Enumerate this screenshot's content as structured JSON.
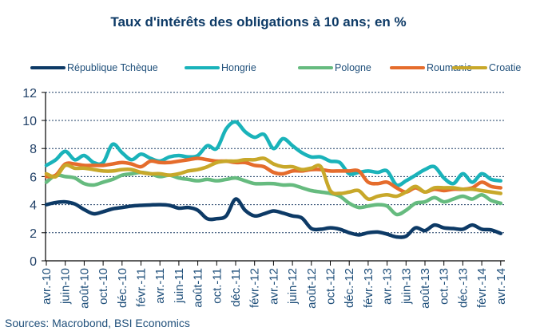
{
  "chart_data": {
    "type": "line",
    "title": "Taux d'intérêts des obligations à 10 ans; en %",
    "xlabel": "",
    "ylabel": "",
    "ylim": [
      0,
      12
    ],
    "yticks": [
      0,
      2,
      4,
      6,
      8,
      10,
      12
    ],
    "grid": true,
    "legend_position": "top",
    "x_tick_labels": [
      "avr.-10",
      "juin-10",
      "août-10",
      "oct.-10",
      "déc.-10",
      "févr.-11",
      "avr.-11",
      "juin-11",
      "août-11",
      "oct.-11",
      "déc.-11",
      "févr.-12",
      "avr.-12",
      "juin-12",
      "août-12",
      "oct.-12",
      "déc.-12",
      "févr.-13",
      "avr.-13",
      "juin-13",
      "août-13",
      "oct.-13",
      "déc.-13",
      "févr.-14",
      "avr.-14"
    ],
    "x": [
      "avr.-10",
      "mai-10",
      "juin-10",
      "juil.-10",
      "août-10",
      "sept.-10",
      "oct.-10",
      "nov.-10",
      "déc.-10",
      "janv.-11",
      "févr.-11",
      "mars-11",
      "avr.-11",
      "mai-11",
      "juin-11",
      "juil.-11",
      "août-11",
      "sept.-11",
      "oct.-11",
      "nov.-11",
      "déc.-11",
      "janv.-12",
      "févr.-12",
      "mars-12",
      "avr.-12",
      "mai-12",
      "juin-12",
      "juil.-12",
      "août-12",
      "sept.-12",
      "oct.-12",
      "nov.-12",
      "déc.-12",
      "janv.-13",
      "févr.-13",
      "mars-13",
      "avr.-13",
      "mai-13",
      "juin-13",
      "juil.-13",
      "août-13",
      "sept.-13",
      "oct.-13",
      "nov.-13",
      "déc.-13",
      "janv.-14",
      "févr.-14",
      "mars-14",
      "avr.-14"
    ],
    "series": [
      {
        "name": "République Tchèque",
        "color": "#0d3a66",
        "values": [
          4.0,
          4.15,
          4.2,
          4.05,
          3.65,
          3.35,
          3.5,
          3.7,
          3.8,
          3.9,
          3.95,
          3.98,
          4.0,
          3.95,
          3.75,
          3.8,
          3.6,
          3.0,
          3.0,
          3.2,
          4.4,
          3.6,
          3.2,
          3.35,
          3.55,
          3.4,
          3.2,
          3.05,
          2.3,
          2.25,
          2.35,
          2.25,
          2.0,
          1.85,
          2.0,
          2.05,
          1.9,
          1.7,
          1.75,
          2.35,
          2.15,
          2.55,
          2.35,
          2.3,
          2.25,
          2.55,
          2.25,
          2.2,
          1.95
        ]
      },
      {
        "name": "Hongrie",
        "color": "#1ab3ba",
        "values": [
          6.8,
          7.2,
          7.8,
          7.2,
          7.5,
          7.0,
          7.0,
          8.3,
          7.7,
          7.2,
          7.6,
          7.3,
          7.1,
          7.4,
          7.5,
          7.4,
          7.5,
          8.2,
          8.0,
          9.4,
          9.9,
          9.2,
          8.8,
          9.0,
          8.0,
          8.7,
          8.2,
          7.7,
          7.4,
          7.4,
          7.1,
          7.0,
          6.2,
          6.3,
          6.4,
          6.3,
          6.4,
          5.4,
          5.7,
          6.1,
          6.5,
          6.7,
          5.9,
          5.5,
          6.2,
          5.6,
          6.2,
          5.8,
          5.7
        ]
      },
      {
        "name": "Pologne",
        "color": "#66bb7f",
        "values": [
          5.6,
          6.1,
          6.0,
          5.9,
          5.5,
          5.4,
          5.6,
          5.8,
          6.1,
          6.2,
          6.3,
          6.2,
          6.0,
          6.1,
          5.9,
          5.8,
          5.7,
          5.8,
          5.7,
          5.8,
          5.9,
          5.7,
          5.5,
          5.5,
          5.5,
          5.4,
          5.4,
          5.2,
          5.0,
          4.9,
          4.8,
          4.6,
          4.1,
          3.8,
          3.9,
          4.0,
          3.9,
          3.3,
          3.6,
          4.1,
          4.2,
          4.5,
          4.2,
          4.4,
          4.6,
          4.4,
          4.7,
          4.3,
          4.1
        ]
      },
      {
        "name": "Roumanie",
        "color": "#e56c2c",
        "values": [
          6.0,
          6.1,
          6.9,
          6.9,
          6.8,
          6.8,
          6.8,
          6.9,
          7.0,
          6.9,
          6.7,
          7.1,
          7.0,
          7.0,
          7.1,
          7.2,
          7.3,
          7.2,
          7.1,
          7.1,
          7.0,
          7.0,
          6.8,
          6.7,
          6.3,
          6.2,
          6.4,
          6.4,
          6.5,
          6.5,
          6.4,
          6.4,
          6.4,
          6.4,
          5.6,
          5.5,
          5.6,
          5.2,
          4.9,
          5.2,
          4.9,
          5.1,
          5.0,
          5.1,
          5.1,
          5.2,
          5.6,
          5.3,
          5.2
        ]
      },
      {
        "name": "Croatie",
        "color": "#c8a82a",
        "values": [
          6.2,
          6.0,
          6.8,
          6.6,
          6.6,
          6.5,
          6.4,
          6.4,
          6.5,
          6.5,
          6.3,
          6.2,
          6.2,
          6.1,
          6.2,
          6.4,
          6.5,
          6.7,
          7.0,
          7.1,
          7.1,
          7.2,
          7.2,
          7.3,
          6.9,
          6.7,
          6.7,
          6.5,
          6.6,
          6.7,
          5.0,
          4.8,
          4.9,
          5.0,
          4.4,
          4.6,
          4.7,
          4.6,
          4.9,
          5.3,
          4.9,
          5.2,
          5.2,
          5.2,
          5.1,
          5.1,
          5.0,
          4.9,
          4.8
        ]
      }
    ],
    "source": "Sources: Macrobond, BSI Economics"
  }
}
